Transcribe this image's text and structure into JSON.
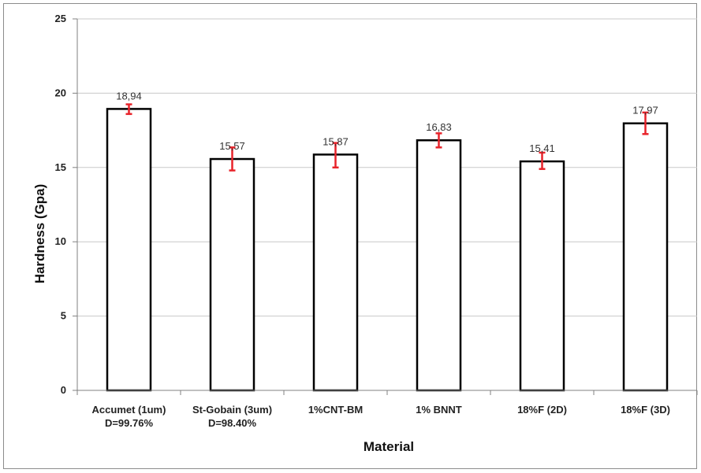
{
  "chart_data": {
    "type": "bar",
    "title": "",
    "xlabel": "Material",
    "ylabel": "Hardness (Gpa)",
    "ylim": [
      0,
      25
    ],
    "yticks": [
      0,
      5,
      10,
      15,
      20,
      25
    ],
    "grid": true,
    "categories": [
      [
        "Accumet (1um)",
        "D=99.76%"
      ],
      [
        "St-Gobain (3um)",
        "D=98.40%"
      ],
      [
        "1%CNT-BM"
      ],
      [
        "1% BNNT"
      ],
      [
        "18%F (2D)"
      ],
      [
        "18%F (3D)"
      ]
    ],
    "values": [
      18.94,
      15.57,
      15.87,
      16.83,
      15.41,
      17.97
    ],
    "data_labels": [
      "18,94",
      "15,57",
      "15,87",
      "16,83",
      "15,41",
      "17,97"
    ],
    "error_bars": [
      [
        18.6,
        19.25
      ],
      [
        14.8,
        16.35
      ],
      [
        15.0,
        16.65
      ],
      [
        16.35,
        17.3
      ],
      [
        14.9,
        16.0
      ],
      [
        17.25,
        18.7
      ]
    ],
    "colors": {
      "bar_fill": "#ffffff",
      "bar_stroke": "#000000",
      "error_bar": "#e8232a",
      "grid": "#c8c8c8",
      "axis": "#808080"
    }
  }
}
